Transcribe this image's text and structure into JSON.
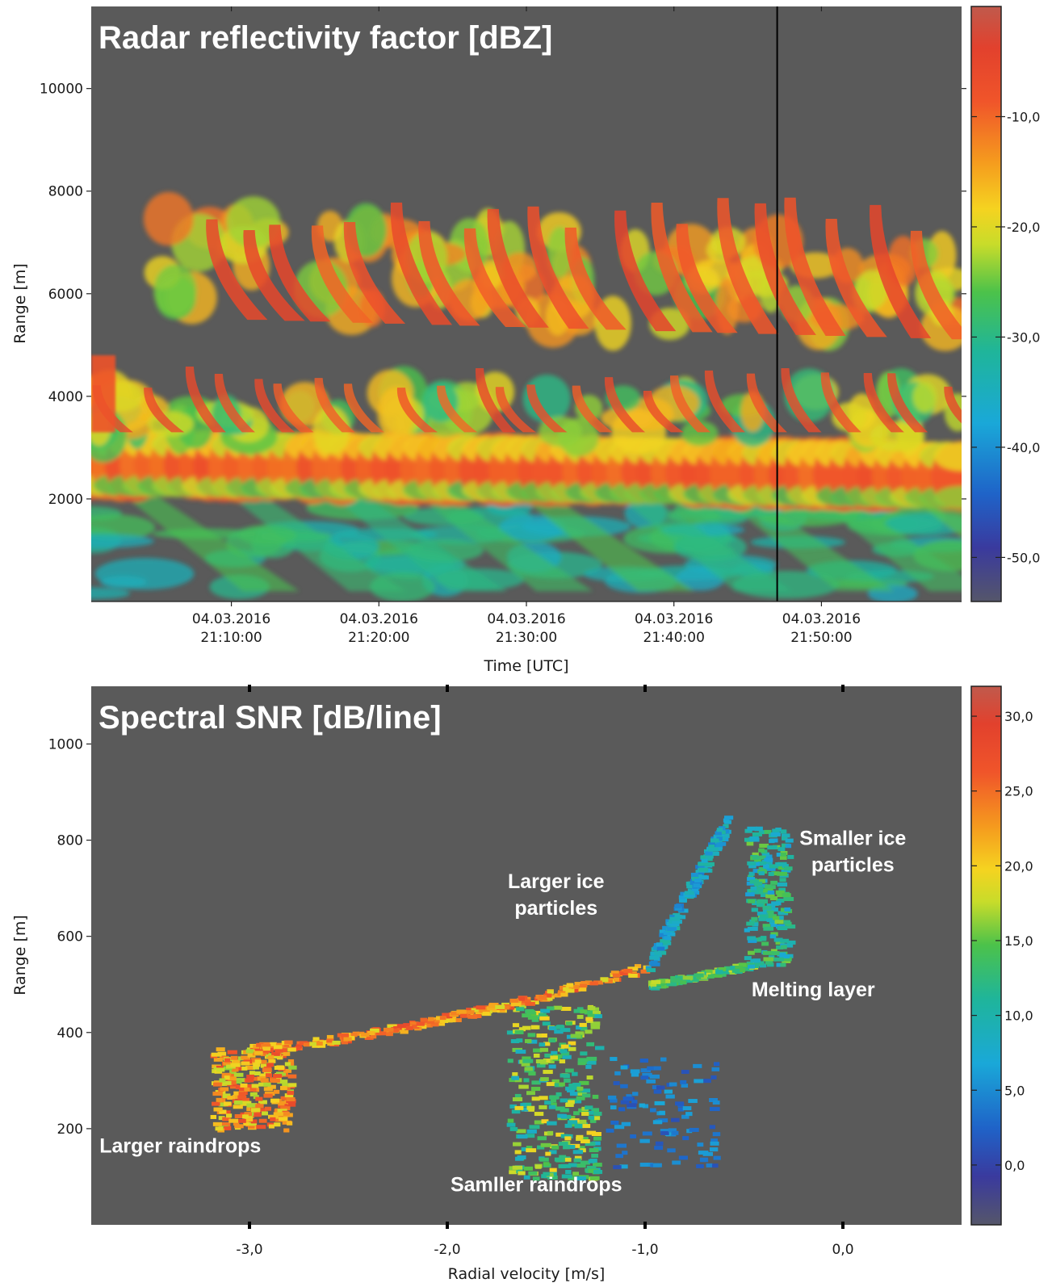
{
  "chart_data": [
    {
      "type": "heatmap",
      "title": "Radar reflectivity factor [dBZ]",
      "xlabel": "Time [UTC]",
      "ylabel": "Range [m]",
      "ylim": [
        0,
        11600
      ],
      "xlim": [
        "04.03.2016 21:00:30",
        "04.03.2016 21:59:30"
      ],
      "x_ticks": [
        {
          "value": "04.03.2016 21:10:00",
          "line1": "04.03.2016",
          "line2": "21:10:00"
        },
        {
          "value": "04.03.2016 21:20:00",
          "line1": "04.03.2016",
          "line2": "21:20:00"
        },
        {
          "value": "04.03.2016 21:30:00",
          "line1": "04.03.2016",
          "line2": "21:30:00"
        },
        {
          "value": "04.03.2016 21:40:00",
          "line1": "04.03.2016",
          "line2": "21:40:00"
        },
        {
          "value": "04.03.2016 21:50:00",
          "line1": "04.03.2016",
          "line2": "21:50:00"
        }
      ],
      "y_ticks": [
        2000,
        4000,
        6000,
        8000,
        10000
      ],
      "y_tick_labels": [
        "2000",
        "4000",
        "6000",
        "8000",
        "10000"
      ],
      "marker_line_time": "04.03.2016 21:47:00",
      "colorbar": {
        "range": [
          -54,
          0
        ],
        "ticks": [
          -50,
          -40,
          -30,
          -20,
          -10
        ],
        "tick_labels": [
          "-50,0",
          "-40,0",
          "-30,0",
          "-20,0",
          "-10,0"
        ]
      },
      "features": [
        {
          "name": "upper ice cloud layer",
          "range_m": [
            5100,
            8000
          ]
        },
        {
          "name": "lower cloud layer fallstreaks",
          "range_m": [
            3000,
            4800
          ]
        },
        {
          "name": "bright band",
          "range_m": [
            2000,
            3000
          ]
        },
        {
          "name": "rain below",
          "range_m": [
            0,
            2000
          ]
        }
      ],
      "grid": false,
      "legend": "colorbar-right"
    },
    {
      "type": "heatmap",
      "title": "Spectral SNR [dB/line]",
      "xlabel": "Radial velocity [m/s]",
      "ylabel": "Range [m]",
      "xlim": [
        -3.8,
        0.6
      ],
      "ylim": [
        0,
        1120
      ],
      "x_ticks": [
        -3.0,
        -2.0,
        -1.0,
        0.0
      ],
      "x_tick_labels": [
        "-3,0",
        "-2,0",
        "-1,0",
        "0,0"
      ],
      "y_ticks": [
        200,
        400,
        600,
        800,
        1000
      ],
      "y_tick_labels": [
        "200",
        "400",
        "600",
        "800",
        "1000"
      ],
      "colorbar": {
        "range": [
          -4,
          32
        ],
        "ticks": [
          0,
          5,
          10,
          15,
          20,
          25,
          30
        ],
        "tick_labels": [
          "0,0",
          "5,0",
          "10,0",
          "15,0",
          "20,0",
          "25,0",
          "30,0"
        ]
      },
      "annotations": [
        {
          "lines": [
            "Larger ice",
            "particles"
          ],
          "x": -1.45,
          "y": 700
        },
        {
          "lines": [
            "Smaller ice",
            "particles"
          ],
          "x": 0.05,
          "y": 790
        },
        {
          "lines": [
            "Melting layer"
          ],
          "x": -0.15,
          "y": 475
        },
        {
          "lines": [
            "Larger raindrops"
          ],
          "x": -3.35,
          "y": 150
        },
        {
          "lines": [
            "Samller raindrops"
          ],
          "x": -1.55,
          "y": 70
        }
      ],
      "features": [
        {
          "name": "larger raindrops",
          "velocity_ms": [
            -3.2,
            -2.8
          ],
          "range_m": [
            200,
            370
          ],
          "snr_db": 24
        },
        {
          "name": "melting layer trace",
          "velocity_ms": [
            -3.0,
            -0.5
          ],
          "range_m": [
            370,
            560
          ],
          "snr_db": 22
        },
        {
          "name": "smaller raindrops",
          "velocity_ms": [
            -1.7,
            -1.3
          ],
          "range_m": [
            100,
            460
          ],
          "snr_db": 14
        },
        {
          "name": "larger ice particles",
          "velocity_ms": [
            -1.0,
            -0.6
          ],
          "range_m": [
            540,
            880
          ],
          "snr_db": 8
        },
        {
          "name": "smaller ice particles",
          "velocity_ms": [
            -0.5,
            -0.25
          ],
          "range_m": [
            540,
            830
          ],
          "snr_db": 10
        }
      ],
      "grid": false,
      "legend": "colorbar-right"
    }
  ],
  "colors": {
    "plot_background": "#5a5a5a",
    "colormap": [
      "#55566a",
      "#3a3a9e",
      "#1f63c8",
      "#1aa8d8",
      "#1fb59a",
      "#4cc24a",
      "#c8dc2a",
      "#f5d320",
      "#f59a1e",
      "#f0552a",
      "#e2412d",
      "#c05a4c"
    ]
  }
}
